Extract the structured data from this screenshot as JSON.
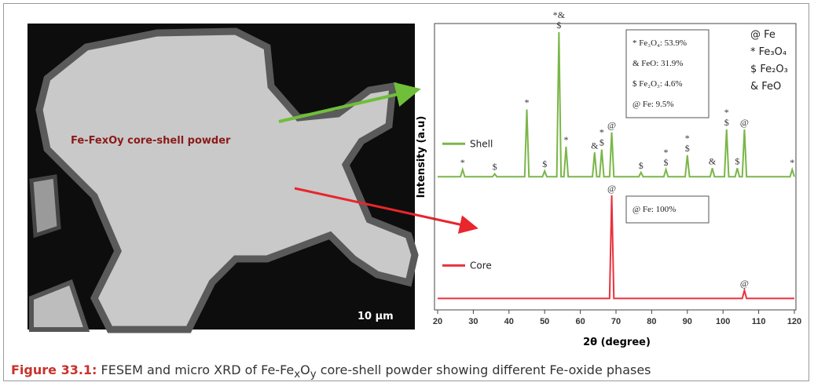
{
  "sem_image": {
    "label": "Fe-FexOy core-shell powder",
    "scale_bar": "10 µm"
  },
  "chart_data": {
    "type": "line",
    "xlabel": "2θ (degree)",
    "ylabel": "Intensity (a.u)",
    "xlim": [
      20,
      120
    ],
    "xticks": [
      20,
      30,
      40,
      50,
      60,
      70,
      80,
      90,
      100,
      110,
      120
    ],
    "ylim": [
      0,
      100
    ],
    "x": [
      20,
      26.4,
      27,
      27.6,
      35.4,
      36,
      36.6,
      44.4,
      45,
      45.6,
      49.4,
      50,
      50.6,
      53.4,
      54,
      54.6,
      55.4,
      56,
      56.6,
      63.4,
      64,
      64.6,
      65.4,
      66,
      66.6,
      68.2,
      68.8,
      69.4,
      76.4,
      77,
      77.6,
      83.4,
      84,
      84.6,
      89.4,
      90,
      90.6,
      96.4,
      97,
      97.6,
      100.4,
      101,
      101.6,
      103.4,
      104,
      104.6,
      105.4,
      106,
      106.6,
      118.8,
      119.4,
      120
    ],
    "series": [
      {
        "name": "Shell",
        "color": "#7ab648",
        "values": [
          46.5,
          46.5,
          49,
          46.5,
          46.5,
          47.5,
          46.5,
          46.5,
          70,
          46.5,
          46.5,
          48.5,
          46.5,
          46.5,
          97,
          46.5,
          46.5,
          57,
          46.5,
          46.5,
          55,
          46.5,
          46.5,
          56,
          46.5,
          46.5,
          62,
          46.5,
          46.5,
          48,
          46.5,
          46.5,
          49,
          46.5,
          46.5,
          54,
          46.5,
          46.5,
          49.5,
          46.5,
          46.5,
          63,
          46.5,
          46.5,
          49.5,
          46.5,
          46.5,
          63,
          46.5,
          46.5,
          49,
          46.5
        ],
        "peak_labels": [
          {
            "x": 27,
            "text": [
              "*"
            ]
          },
          {
            "x": 36,
            "text": [
              "$"
            ]
          },
          {
            "x": 45,
            "text": [
              "*"
            ]
          },
          {
            "x": 50,
            "text": [
              "$"
            ]
          },
          {
            "x": 54,
            "text": [
              "*&",
              "$"
            ]
          },
          {
            "x": 56,
            "text": [
              "*"
            ]
          },
          {
            "x": 64,
            "text": [
              "&"
            ]
          },
          {
            "x": 66,
            "text": [
              "*",
              "$"
            ]
          },
          {
            "x": 68.8,
            "text": [
              "@"
            ]
          },
          {
            "x": 77,
            "text": [
              "$"
            ]
          },
          {
            "x": 84,
            "text": [
              "*",
              "$"
            ]
          },
          {
            "x": 90,
            "text": [
              "*",
              "$"
            ]
          },
          {
            "x": 97,
            "text": [
              "&"
            ]
          },
          {
            "x": 101,
            "text": [
              "*",
              "$"
            ]
          },
          {
            "x": 104,
            "text": [
              "$"
            ]
          },
          {
            "x": 106,
            "text": [
              "@"
            ]
          },
          {
            "x": 119.4,
            "text": [
              "*"
            ]
          }
        ],
        "box": [
          "* Fe₃O₄: 53.9%",
          "& FeO: 31.9%",
          "$ Fe₂O₃: 4.6%",
          "@ Fe: 9.5%"
        ]
      },
      {
        "name": "Core",
        "color": "#e8323c",
        "values": [
          4,
          4,
          4,
          4,
          4,
          4,
          4,
          4,
          4,
          4,
          4,
          4,
          4,
          4,
          4,
          4,
          4,
          4,
          4,
          4,
          4,
          4,
          4,
          4,
          4,
          4,
          40,
          4,
          4,
          4,
          4,
          4,
          4,
          4,
          4,
          4,
          4,
          4,
          4,
          4,
          4,
          4,
          4,
          4,
          4,
          4,
          4,
          6.8,
          4,
          4,
          4,
          4
        ],
        "peak_labels": [
          {
            "x": 68.8,
            "text": [
              "@"
            ]
          },
          {
            "x": 106,
            "text": [
              "@"
            ]
          }
        ],
        "box": [
          "@ Fe: 100%"
        ]
      }
    ],
    "phase_key": [
      "@ Fe",
      "* Fe₃O₄",
      "$ Fe₂O₃",
      "& FeO"
    ]
  },
  "caption": {
    "label": "Figure 33.1:",
    "parts": [
      "FESEM and micro XRD of Fe-Fe",
      "x",
      "O",
      "y",
      " core-shell powder showing different Fe-oxide phases"
    ]
  }
}
